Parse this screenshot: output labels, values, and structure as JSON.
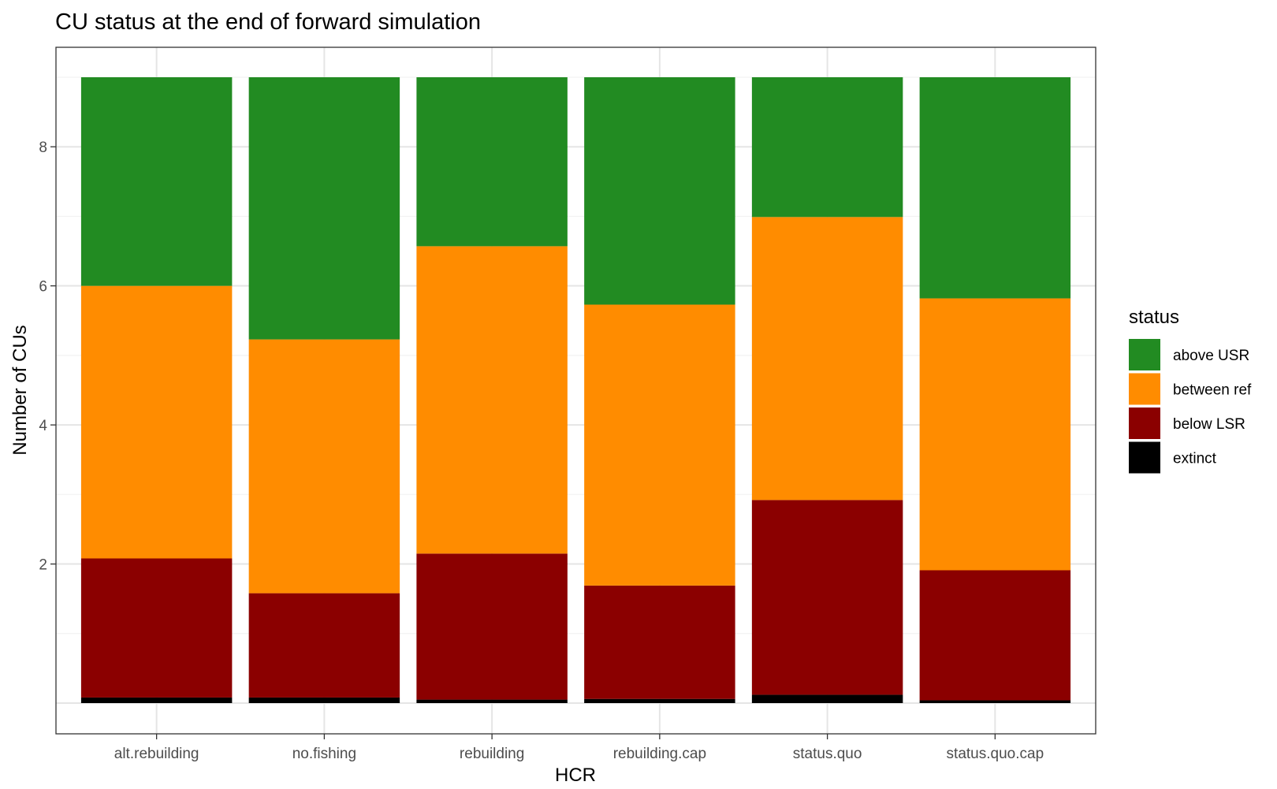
{
  "chart_data": {
    "type": "bar",
    "stacked": true,
    "title": "CU status at the end of forward simulation",
    "xlabel": "HCR",
    "ylabel": "Number of CUs",
    "ylim": [
      0,
      9
    ],
    "yticks": [
      2,
      4,
      6,
      8
    ],
    "grid": true,
    "legend": {
      "title": "status",
      "position": "right"
    },
    "categories": [
      "alt.rebuilding",
      "no.fishing",
      "rebuilding",
      "rebuilding.cap",
      "status.quo",
      "status.quo.cap"
    ],
    "series": [
      {
        "name": "extinct",
        "color": "#000000",
        "values": [
          0.08,
          0.08,
          0.05,
          0.06,
          0.12,
          0.04
        ]
      },
      {
        "name": "below LSR",
        "color": "#8B0000",
        "values": [
          2.0,
          1.5,
          2.1,
          1.63,
          2.8,
          1.87
        ]
      },
      {
        "name": "between ref",
        "color": "#FF8C00",
        "values": [
          3.92,
          3.65,
          4.42,
          4.04,
          4.07,
          3.91
        ]
      },
      {
        "name": "above USR",
        "color": "#228B22",
        "values": [
          3.0,
          3.77,
          2.43,
          3.27,
          2.01,
          3.18
        ]
      }
    ],
    "legend_order": [
      "above USR",
      "between ref",
      "below LSR",
      "extinct"
    ]
  }
}
